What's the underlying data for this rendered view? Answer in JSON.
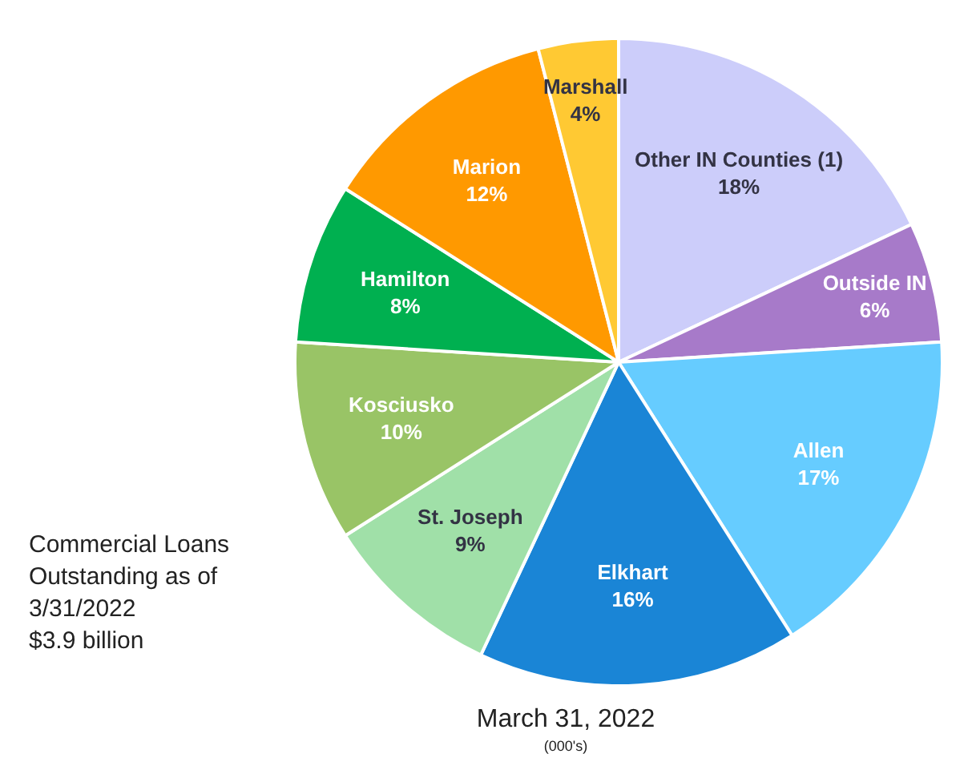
{
  "chart_data": {
    "type": "pie",
    "title": "March 31, 2022",
    "subtitle": "(000's)",
    "annotations": [
      "Commercial Loans\nOutstanding as of\n3/31/2022\n$3.9 billion"
    ],
    "categories": [
      "Other IN Counties (1)",
      "Outside IN",
      "Allen",
      "Elkhart",
      "St. Joseph",
      "Kosciusko",
      "Hamilton",
      "Marion",
      "Marshall"
    ],
    "values": [
      18,
      6,
      17,
      16,
      9,
      10,
      8,
      12,
      4
    ],
    "value_labels": [
      "18%",
      "6%",
      "17%",
      "16%",
      "9%",
      "10%",
      "8%",
      "12%",
      "4%"
    ],
    "colors": [
      "#cccdfa",
      "#a77ac9",
      "#66ccff",
      "#1a85d6",
      "#a0e0a8",
      "#99c466",
      "#00b050",
      "#ff9900",
      "#ffc933"
    ],
    "legend": false
  }
}
